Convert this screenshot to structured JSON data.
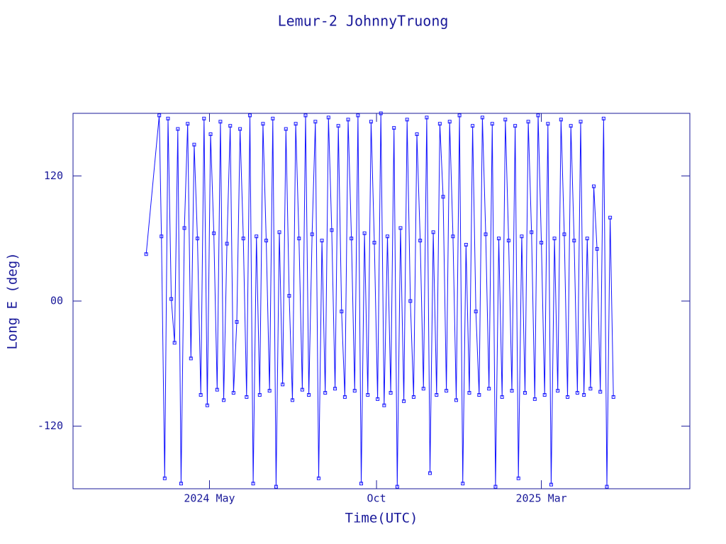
{
  "chart_data": {
    "type": "line",
    "title": "Lemur-2 JohnnyTruong",
    "x_label": "Time(UTC)",
    "y_label": "Long E (deg)",
    "xlim": [
      -125,
      440
    ],
    "xticks": [
      {
        "value": 0,
        "label": "2024 May"
      },
      {
        "value": 153,
        "label": "Oct"
      },
      {
        "value": 304,
        "label": "2025 Mar"
      }
    ],
    "ylim": [
      -180,
      180
    ],
    "yticks": [
      {
        "value": -120,
        "label": "-120"
      },
      {
        "value": 0,
        "label": "00"
      },
      {
        "value": 120,
        "label": "120"
      }
    ],
    "color": "#1414ff",
    "x": [
      -58,
      -46,
      -44,
      -41,
      -38,
      -35,
      -32,
      -29,
      -26,
      -23,
      -20,
      -17,
      -14,
      -11,
      -8,
      -5,
      -2,
      1,
      4,
      7,
      10,
      13,
      16,
      19,
      22,
      25,
      28,
      31,
      34,
      37,
      40,
      43,
      46,
      49,
      52,
      55,
      58,
      61,
      64,
      67,
      70,
      73,
      76,
      79,
      82,
      85,
      88,
      91,
      94,
      97,
      100,
      103,
      106,
      109,
      112,
      115,
      118,
      121,
      124,
      127,
      130,
      133,
      136,
      139,
      142,
      145,
      148,
      151,
      154,
      157,
      160,
      163,
      166,
      169,
      172,
      175,
      178,
      181,
      184,
      187,
      190,
      193,
      196,
      199,
      202,
      205,
      208,
      211,
      214,
      217,
      220,
      223,
      226,
      229,
      232,
      235,
      238,
      241,
      244,
      247,
      250,
      253,
      256,
      259,
      262,
      265,
      268,
      271,
      274,
      277,
      280,
      283,
      286,
      289,
      292,
      295,
      298,
      301,
      304,
      307,
      310,
      313,
      316,
      319,
      322,
      325,
      328,
      331,
      334,
      337,
      340,
      343,
      346,
      349,
      352,
      355,
      358,
      361,
      364,
      367,
      370
    ],
    "values": [
      45,
      178,
      62,
      -170,
      175,
      2,
      -40,
      165,
      -175,
      70,
      170,
      -55,
      150,
      60,
      -90,
      175,
      -100,
      160,
      65,
      -85,
      172,
      -95,
      55,
      168,
      -88,
      -20,
      165,
      60,
      -92,
      178,
      -175,
      62,
      -90,
      170,
      58,
      -86,
      175,
      -178,
      66,
      -80,
      165,
      5,
      -95,
      170,
      60,
      -85,
      178,
      -90,
      64,
      172,
      -170,
      58,
      -88,
      176,
      68,
      -84,
      168,
      -10,
      -92,
      174,
      60,
      -86,
      178,
      -175,
      65,
      -90,
      172,
      56,
      -94,
      180,
      -100,
      62,
      -88,
      166,
      -178,
      70,
      -96,
      174,
      0,
      -92,
      160,
      58,
      -84,
      176,
      -165,
      66,
      -90,
      170,
      100,
      -86,
      172,
      62,
      -95,
      178,
      -175,
      54,
      -88,
      168,
      -10,
      -90,
      176,
      64,
      -84,
      170,
      -178,
      60,
      -92,
      174,
      58,
      -86,
      168,
      -170,
      62,
      -88,
      172,
      66,
      -94,
      178,
      56,
      -90,
      170,
      -176,
      60,
      -86,
      174,
      64,
      -92,
      168,
      58,
      -88,
      172,
      -90,
      60,
      -84,
      110,
      50,
      -87,
      175,
      -178,
      80,
      -92
    ]
  }
}
